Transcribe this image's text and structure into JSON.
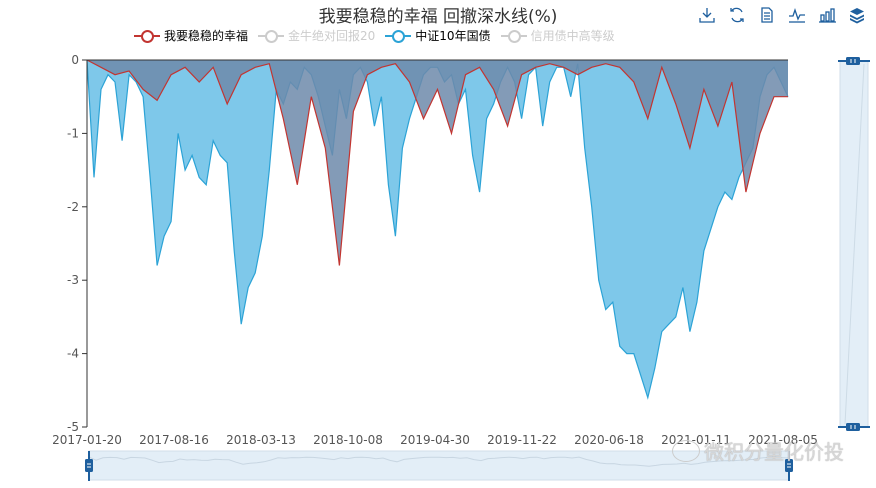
{
  "chart_data": {
    "type": "area",
    "title": "我要稳稳的幸福 回撤深水线(%)",
    "ylabel": "",
    "xlabel": "",
    "ylim": [
      -5,
      0
    ],
    "yticks": [
      0,
      -1,
      -2,
      -3,
      -4,
      -5
    ],
    "xticks": [
      "2017-01-20",
      "2017-08-16",
      "2018-03-13",
      "2018-10-08",
      "2019-04-30",
      "2019-11-22",
      "2020-06-18",
      "2021-01-11",
      "2021-08-05"
    ],
    "legend_position": "top",
    "grid": false,
    "series": [
      {
        "name": "我要稳稳的幸福",
        "color": "#c23531",
        "visible": true,
        "x_frac": [
          0,
          0.02,
          0.04,
          0.06,
          0.08,
          0.1,
          0.12,
          0.14,
          0.16,
          0.18,
          0.2,
          0.22,
          0.24,
          0.26,
          0.28,
          0.3,
          0.32,
          0.34,
          0.36,
          0.38,
          0.4,
          0.42,
          0.44,
          0.46,
          0.48,
          0.5,
          0.52,
          0.54,
          0.56,
          0.58,
          0.6,
          0.62,
          0.64,
          0.66,
          0.68,
          0.7,
          0.72,
          0.74,
          0.76,
          0.78,
          0.8,
          0.82,
          0.84,
          0.86,
          0.88,
          0.9,
          0.92,
          0.94,
          0.96,
          0.98,
          1.0
        ],
        "values": [
          0,
          -0.1,
          -0.2,
          -0.15,
          -0.4,
          -0.55,
          -0.2,
          -0.1,
          -0.3,
          -0.1,
          -0.6,
          -0.2,
          -0.1,
          -0.05,
          -0.8,
          -1.7,
          -0.5,
          -1.2,
          -2.8,
          -0.7,
          -0.2,
          -0.1,
          -0.05,
          -0.3,
          -0.8,
          -0.4,
          -1.0,
          -0.2,
          -0.1,
          -0.4,
          -0.9,
          -0.2,
          -0.1,
          -0.05,
          -0.1,
          -0.2,
          -0.1,
          -0.05,
          -0.1,
          -0.3,
          -0.8,
          -0.1,
          -0.6,
          -1.2,
          -0.4,
          -0.9,
          -0.3,
          -1.8,
          -1.0,
          -0.5,
          -0.5
        ]
      },
      {
        "name": "金牛绝对回报20",
        "color": "#cccccc",
        "visible": false,
        "values": []
      },
      {
        "name": "中证10年国债",
        "color": "#2ca3d6",
        "visible": true,
        "x_frac": [
          0,
          0.01,
          0.02,
          0.03,
          0.04,
          0.05,
          0.06,
          0.07,
          0.08,
          0.09,
          0.1,
          0.11,
          0.12,
          0.13,
          0.14,
          0.15,
          0.16,
          0.17,
          0.18,
          0.19,
          0.2,
          0.21,
          0.22,
          0.23,
          0.24,
          0.25,
          0.26,
          0.27,
          0.28,
          0.29,
          0.3,
          0.31,
          0.32,
          0.33,
          0.34,
          0.35,
          0.36,
          0.37,
          0.38,
          0.39,
          0.4,
          0.41,
          0.42,
          0.43,
          0.44,
          0.45,
          0.46,
          0.47,
          0.48,
          0.49,
          0.5,
          0.51,
          0.52,
          0.53,
          0.54,
          0.55,
          0.56,
          0.57,
          0.58,
          0.59,
          0.6,
          0.61,
          0.62,
          0.63,
          0.64,
          0.65,
          0.66,
          0.67,
          0.68,
          0.69,
          0.7,
          0.71,
          0.72,
          0.73,
          0.74,
          0.75,
          0.76,
          0.77,
          0.78,
          0.79,
          0.8,
          0.81,
          0.82,
          0.83,
          0.84,
          0.85,
          0.86,
          0.87,
          0.88,
          0.89,
          0.9,
          0.91,
          0.92,
          0.93,
          0.94,
          0.95,
          0.96,
          0.97,
          0.98,
          0.99,
          1.0
        ],
        "values": [
          0,
          -1.6,
          -0.4,
          -0.2,
          -0.3,
          -1.1,
          -0.2,
          -0.3,
          -0.5,
          -1.6,
          -2.8,
          -2.4,
          -2.2,
          -1.0,
          -1.5,
          -1.3,
          -1.6,
          -1.7,
          -1.1,
          -1.3,
          -1.4,
          -2.6,
          -3.6,
          -3.1,
          -2.9,
          -2.4,
          -1.5,
          -0.4,
          -0.6,
          -0.3,
          -0.4,
          -0.1,
          -0.2,
          -0.5,
          -0.9,
          -1.3,
          -0.4,
          -0.8,
          -0.2,
          -0.1,
          -0.3,
          -0.9,
          -0.5,
          -1.7,
          -2.4,
          -1.2,
          -0.8,
          -0.5,
          -0.2,
          -0.1,
          -0.1,
          -0.3,
          -0.2,
          -0.6,
          -0.4,
          -1.3,
          -1.8,
          -0.8,
          -0.6,
          -0.3,
          -0.1,
          -0.3,
          -0.8,
          -0.2,
          -0.1,
          -0.9,
          -0.3,
          -0.1,
          -0.1,
          -0.5,
          -0.05,
          -1.2,
          -2.0,
          -3.0,
          -3.4,
          -3.3,
          -3.9,
          -4.0,
          -4.0,
          -4.3,
          -4.6,
          -4.2,
          -3.7,
          -3.6,
          -3.5,
          -3.1,
          -3.7,
          -3.3,
          -2.6,
          -2.3,
          -2.0,
          -1.8,
          -1.9,
          -1.6,
          -1.4,
          -1.2,
          -0.5,
          -0.2,
          -0.1,
          -0.3,
          -0.5
        ]
      },
      {
        "name": "信用债中高等级",
        "color": "#cccccc",
        "visible": false,
        "values": []
      }
    ]
  },
  "legend": [
    {
      "label": "我要稳稳的幸福",
      "color": "#c23531",
      "visible": true
    },
    {
      "label": "金牛绝对回报20",
      "color": "#cccccc",
      "visible": false
    },
    {
      "label": "中证10年国债",
      "color": "#2ca3d6",
      "visible": true
    },
    {
      "label": "信用债中高等级",
      "color": "#cccccc",
      "visible": false
    }
  ],
  "toolbox": [
    "download-icon",
    "refresh-icon",
    "data-view-icon",
    "line-chart-icon",
    "bar-chart-icon",
    "stack-icon"
  ],
  "watermark": "微积分量化价投",
  "colors": {
    "axis": "#333333",
    "tick_text": "#555555",
    "fund_fill": "#6d89aa",
    "bond_fill": "#7ec8ea",
    "slider_fill": "#e3eef7",
    "slider_handle": "#1e5f9e"
  }
}
